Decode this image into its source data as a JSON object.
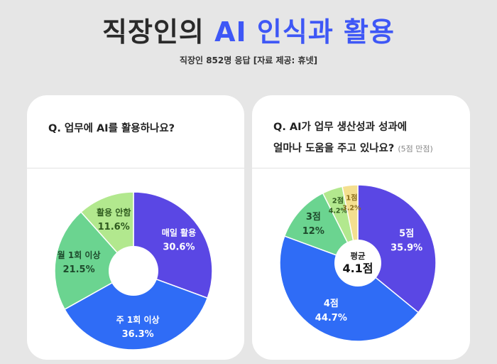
{
  "header": {
    "title_part1": "직장인의",
    "title_accent": "AI 인식과 활용",
    "subtitle": "직장인 852명 응답 [자료 제공: 휴넷]"
  },
  "colors": {
    "accent": "#3e57f6",
    "purple": "#5a47e4",
    "blue": "#2f6cf6",
    "green": "#6bd490",
    "light_green": "#b2e88e",
    "yellow": "#f4df8f"
  },
  "chart_data": [
    {
      "type": "pie",
      "title": "Q. 업무에 AI를 활용하나요?",
      "donut": true,
      "slices": [
        {
          "label": "매일 활용",
          "value": 30.6,
          "value_label": "30.6%",
          "color": "#5a47e4",
          "text_color": "#ffffff"
        },
        {
          "label": "주 1회 이상",
          "value": 36.3,
          "value_label": "36.3%",
          "color": "#2f6cf6",
          "text_color": "#ffffff"
        },
        {
          "label": "월 1회 이상",
          "value": 21.5,
          "value_label": "21.5%",
          "color": "#6bd490",
          "text_color": "#1e4a2c"
        },
        {
          "label": "활용 안함",
          "value": 11.6,
          "value_label": "11.6%",
          "color": "#b2e88e",
          "text_color": "#2e5a1e"
        }
      ]
    },
    {
      "type": "pie",
      "title_line1": "Q. AI가 업무 생산성과 성과에",
      "title_line2": "얼마나 도움을 주고 있나요?",
      "title_note": "(5점 만점)",
      "donut": true,
      "center_label": "평균",
      "center_value": "4.1점",
      "slices": [
        {
          "label": "5점",
          "value": 35.9,
          "value_label": "35.9%",
          "color": "#5a47e4",
          "text_color": "#ffffff"
        },
        {
          "label": "4점",
          "value": 44.7,
          "value_label": "44.7%",
          "color": "#2f6cf6",
          "text_color": "#ffffff"
        },
        {
          "label": "3점",
          "value": 12,
          "value_label": "12%",
          "color": "#6bd490",
          "text_color": "#1e4a2c"
        },
        {
          "label": "2점",
          "value": 4.2,
          "value_label": "4.2%",
          "color": "#b2e88e",
          "text_color": "#2e5a1e"
        },
        {
          "label": "1점",
          "value": 3.2,
          "value_label": "3.2%",
          "color": "#f4df8f",
          "text_color": "#8a6d1c"
        }
      ]
    }
  ]
}
